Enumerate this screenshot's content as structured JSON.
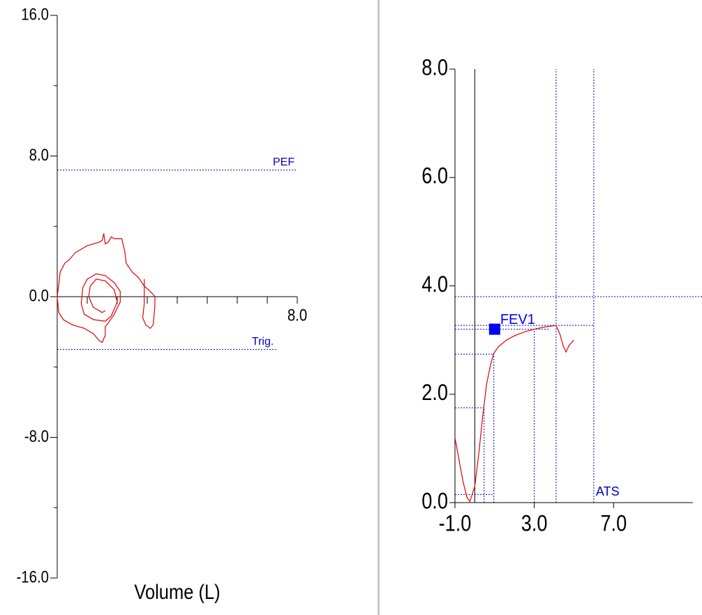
{
  "chart_data": [
    {
      "type": "line",
      "xlabel": "Volume (L)",
      "xlim": [
        0,
        8
      ],
      "xticks": [
        {
          "value": 8,
          "label": "8.0"
        }
      ],
      "xminorticks": [
        1,
        2,
        3,
        4,
        5,
        6,
        7
      ],
      "ylim": [
        -16,
        16
      ],
      "yticks": [
        {
          "value": 16,
          "label": "16.0"
        },
        {
          "value": 8,
          "label": "8.0"
        },
        {
          "value": 0,
          "label": "0.0"
        },
        {
          "value": -8,
          "label": "-8.0"
        },
        {
          "value": -16,
          "label": "-16.0"
        }
      ],
      "yminorticks": [
        12,
        4,
        -4,
        -12
      ],
      "hlines": [
        {
          "y": 7.2,
          "xmin": 0,
          "xmax": 8,
          "label": "PEF"
        },
        {
          "y": -3,
          "xmin": 0,
          "xmax": 7.3,
          "label": "Trig."
        }
      ],
      "series": [
        {
          "color": "#e00000",
          "x": [
            0,
            0.1,
            0.25,
            0.4,
            0.6,
            0.8,
            1.0,
            1.2,
            1.4,
            1.5,
            1.55,
            1.6,
            1.7,
            1.8,
            1.9,
            2.15,
            2.25,
            2.3,
            2.5,
            2.7,
            2.9,
            3.1,
            3.26
          ],
          "values": [
            0,
            1.4,
            1.9,
            2.1,
            2.5,
            2.7,
            2.9,
            3.0,
            3.1,
            3.2,
            3.6,
            3.0,
            3.1,
            3.4,
            3.3,
            3.3,
            2.6,
            1.9,
            1.4,
            1.1,
            0.6,
            0.3,
            0
          ]
        },
        {
          "color": "#e00000",
          "x": [
            3.26,
            3.25,
            3.2,
            3.1,
            2.95,
            2.85,
            2.9,
            2.9
          ],
          "values": [
            0,
            -0.6,
            -1.6,
            -1.8,
            -1.6,
            -1.2,
            -0.4,
            1.0
          ]
        },
        {
          "color": "#e00000",
          "x": [
            0,
            0.05,
            0.2,
            0.5,
            0.9,
            1.2,
            1.4,
            1.5,
            1.6,
            1.6,
            1.7,
            1.9,
            2.1,
            2.1,
            1.9,
            1.6,
            1.3,
            1.0,
            0.85,
            0.8,
            0.9,
            1.2,
            1.6,
            1.8,
            2.0,
            1.9,
            1.6,
            1.3,
            1.1,
            1.05,
            1.2,
            1.5,
            1.6
          ],
          "values": [
            0,
            -0.9,
            -1.3,
            -1.6,
            -1.8,
            -2.1,
            -2.5,
            -2.6,
            -2.2,
            -1.7,
            -1.5,
            -1.0,
            -0.3,
            0.3,
            0.8,
            1.2,
            1.3,
            1.0,
            0.5,
            -0.4,
            -1.0,
            -1.3,
            -1.4,
            -1.1,
            -0.3,
            0.4,
            0.9,
            1.0,
            0.6,
            0,
            -0.6,
            -0.9,
            -0.8
          ]
        }
      ]
    },
    {
      "type": "line",
      "xlim": [
        -1,
        11
      ],
      "xticks": [
        {
          "value": -1,
          "label": "-1.0"
        },
        {
          "value": 3,
          "label": "3.0"
        },
        {
          "value": 7,
          "label": "7.0"
        }
      ],
      "ylim": [
        0,
        8
      ],
      "yticks": [
        {
          "value": 0,
          "label": "0.0"
        },
        {
          "value": 2,
          "label": "2.0"
        },
        {
          "value": 4,
          "label": "4.0"
        },
        {
          "value": 6,
          "label": "6.0"
        },
        {
          "value": 8,
          "label": "8.0"
        }
      ],
      "solid_vlines": [
        {
          "x": 0,
          "ymin": 0,
          "ymax": 8
        }
      ],
      "vlines": [
        {
          "x": 0.47,
          "ymin": 0,
          "ymax": 1.75
        },
        {
          "x": 0.96,
          "ymin": 0,
          "ymax": 2.74
        },
        {
          "x": 3.0,
          "ymin": 0,
          "ymax": 3.2
        },
        {
          "x": 4.1,
          "ymin": 0,
          "ymax": 8
        },
        {
          "x": 6.0,
          "ymin": 0,
          "ymax": 8,
          "label": "ATS"
        }
      ],
      "hlines": [
        {
          "y": 3.8,
          "xmin": -1,
          "xmax": 11.5
        },
        {
          "y": 3.27,
          "xmin": -1,
          "xmax": 6.0
        },
        {
          "y": 3.2,
          "xmin": -1,
          "xmax": 3.8
        },
        {
          "y": 2.74,
          "xmin": -1,
          "xmax": 0.96
        },
        {
          "y": 1.75,
          "xmin": -1,
          "xmax": 0.47
        },
        {
          "y": 0.15,
          "xmin": -1,
          "xmax": 0.96
        }
      ],
      "markers": [
        {
          "x": 1.0,
          "y": 3.2,
          "label": "FEV1",
          "color": "#0000ff"
        }
      ],
      "series": [
        {
          "color": "#e00000",
          "x": [
            -1,
            -0.8,
            -0.6,
            -0.4,
            -0.25,
            0,
            0.2,
            0.4,
            0.6,
            0.8,
            0.95,
            1.2,
            1.6,
            2.0,
            2.5,
            3.0,
            3.5,
            4.1,
            4.3,
            4.45,
            4.6,
            4.75,
            5.0
          ],
          "values": [
            1.2,
            0.8,
            0.4,
            0.1,
            0.02,
            0.3,
            0.9,
            1.6,
            2.2,
            2.55,
            2.75,
            2.88,
            3.0,
            3.08,
            3.15,
            3.2,
            3.24,
            3.27,
            3.1,
            2.9,
            2.78,
            2.9,
            3.0
          ]
        }
      ]
    }
  ]
}
